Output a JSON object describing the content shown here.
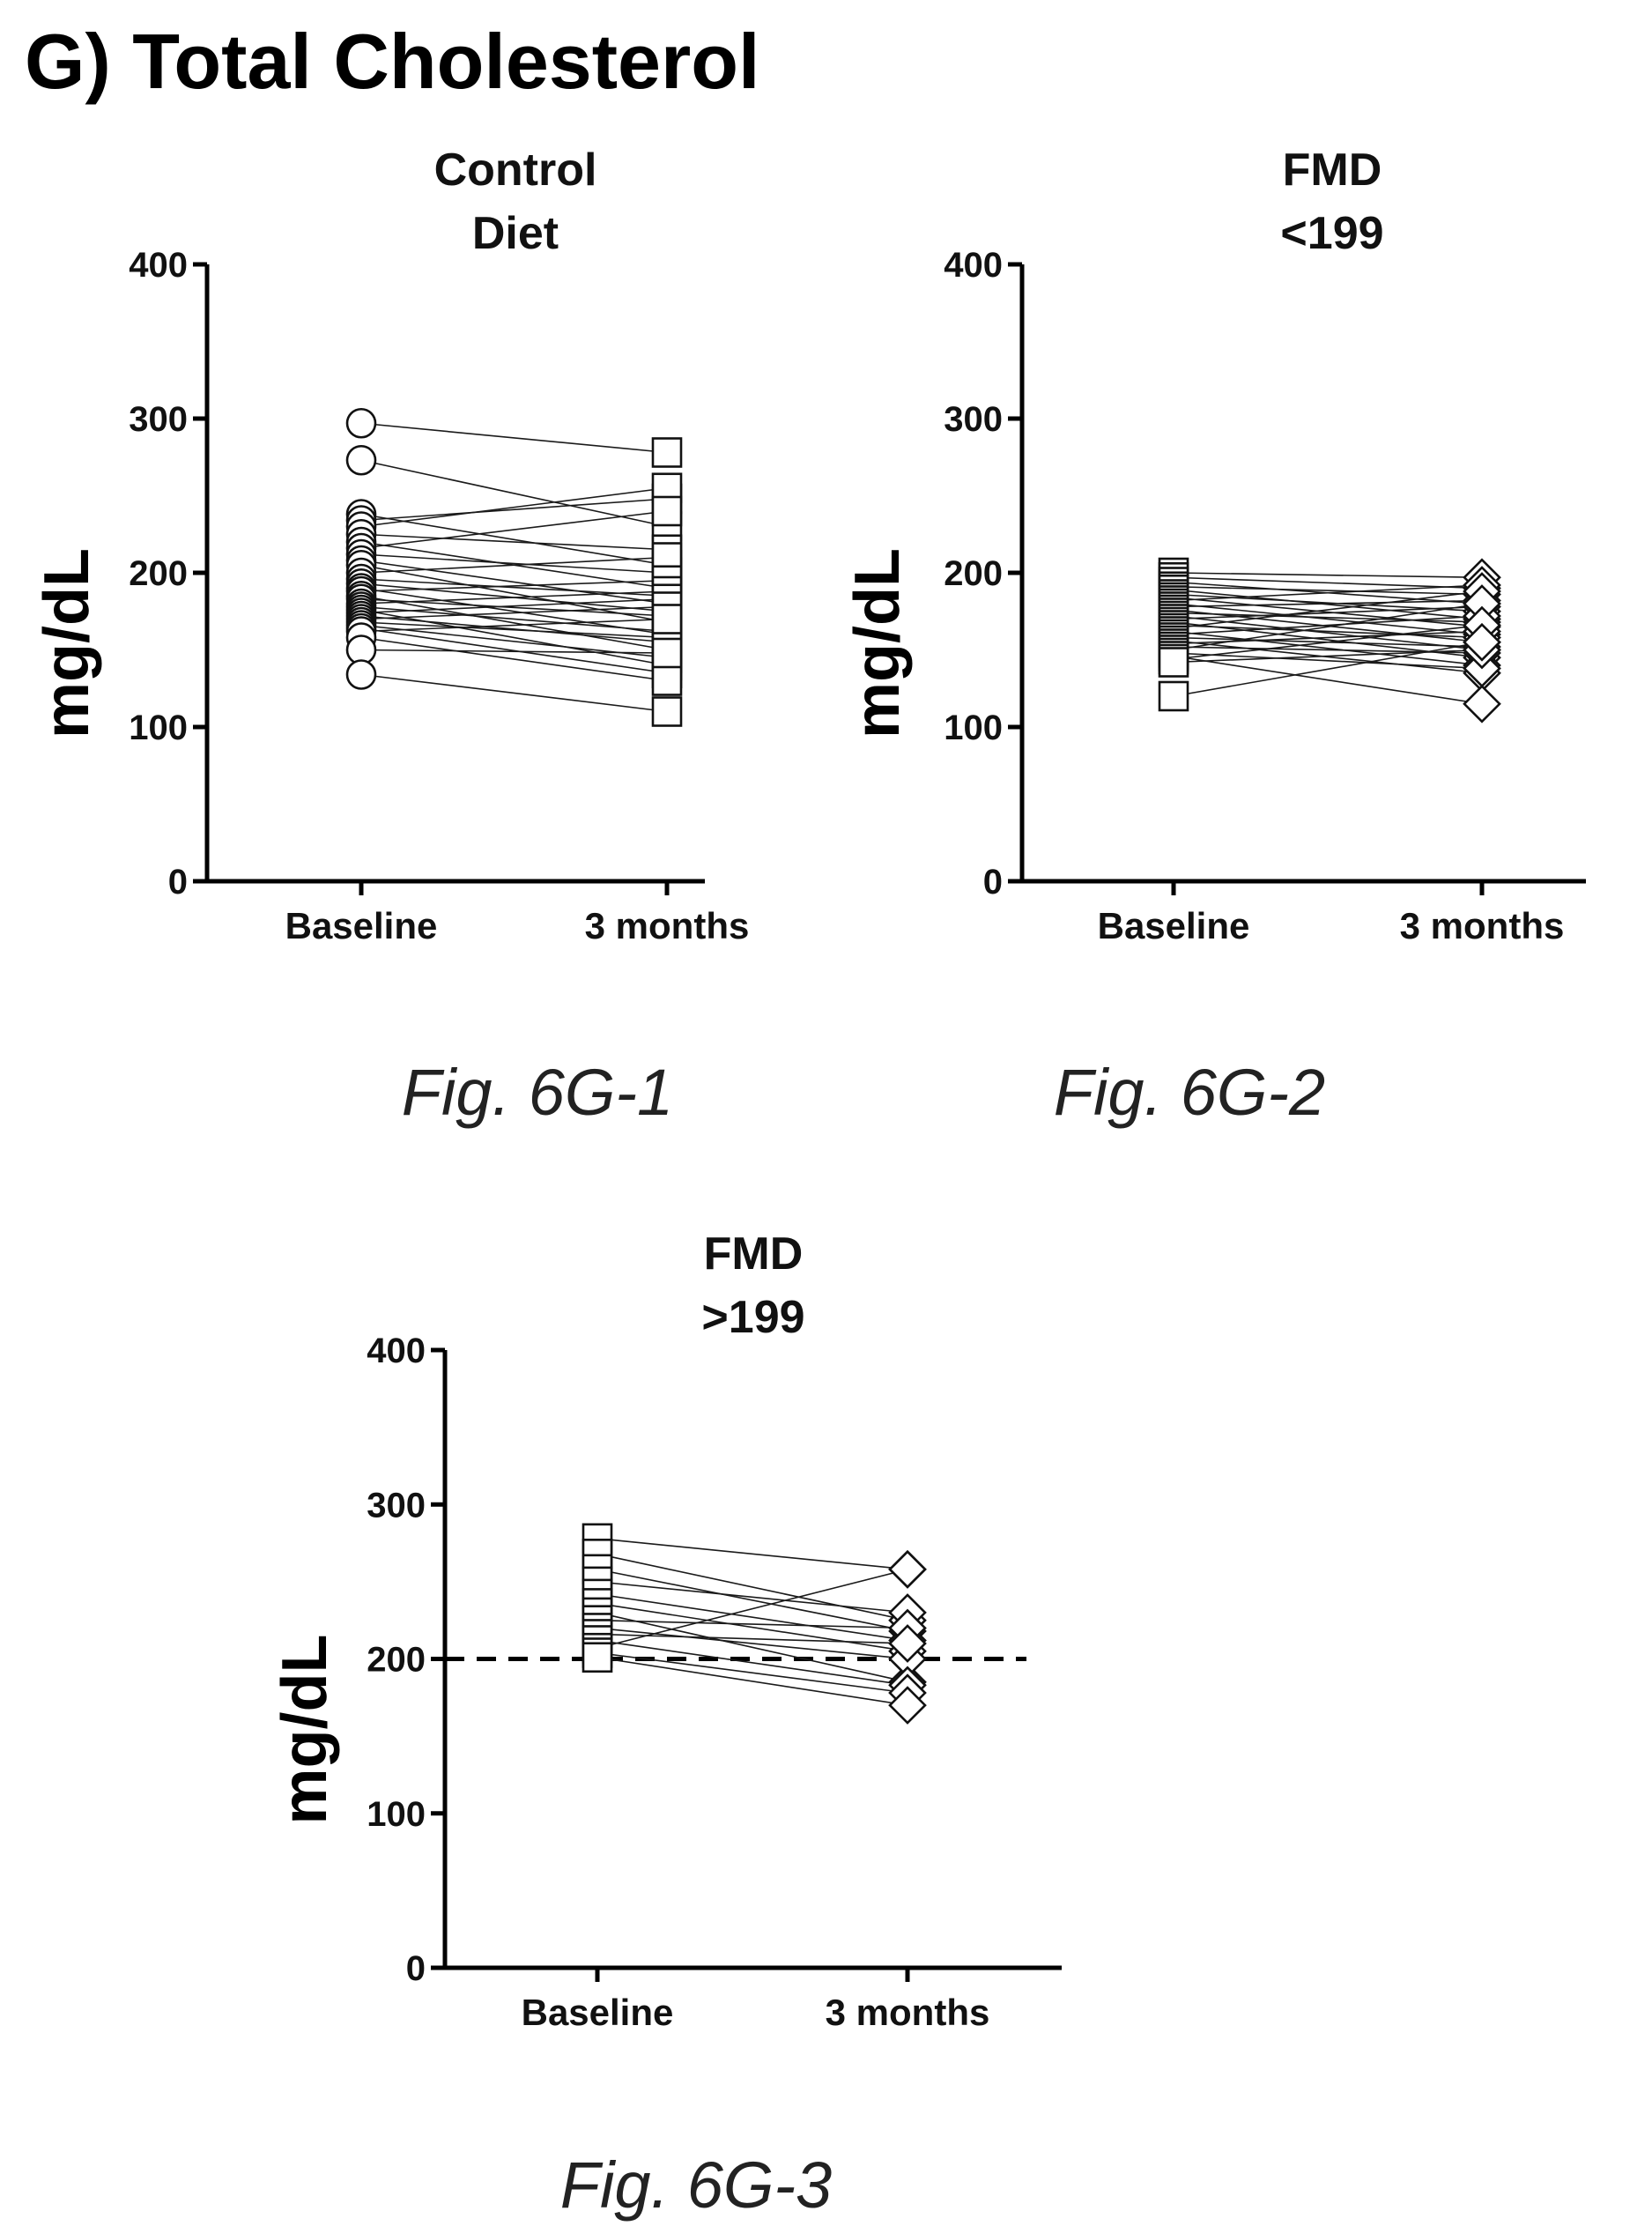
{
  "figure_title": "G) Total Cholesterol",
  "chart_data": [
    {
      "type": "line",
      "title": "Control Diet",
      "title_lines": [
        "Control",
        "Diet"
      ],
      "caption": "Fig. 6G-1",
      "ylabel": "mg/dL",
      "xlabel": "",
      "categories": [
        "Baseline",
        "3 months"
      ],
      "ylim": [
        0,
        400
      ],
      "yticks": [
        "0",
        "100",
        "200",
        "300",
        "400"
      ],
      "grid": false,
      "markers": {
        "baseline": "circle",
        "followup": "square"
      },
      "pairs": [
        [
          297,
          278
        ],
        [
          273,
          230
        ],
        [
          238,
          205
        ],
        [
          234,
          248
        ],
        [
          230,
          255
        ],
        [
          225,
          215
        ],
        [
          220,
          190
        ],
        [
          216,
          240
        ],
        [
          212,
          200
        ],
        [
          208,
          180
        ],
        [
          205,
          168
        ],
        [
          200,
          210
        ],
        [
          196,
          185
        ],
        [
          193,
          175
        ],
        [
          190,
          160
        ],
        [
          188,
          195
        ],
        [
          185,
          150
        ],
        [
          183,
          172
        ],
        [
          180,
          188
        ],
        [
          178,
          162
        ],
        [
          176,
          140
        ],
        [
          174,
          183
        ],
        [
          172,
          155
        ],
        [
          170,
          178
        ],
        [
          168,
          158
        ],
        [
          166,
          145
        ],
        [
          164,
          135
        ],
        [
          162,
          170
        ],
        [
          158,
          130
        ],
        [
          150,
          148
        ],
        [
          134,
          110
        ]
      ]
    },
    {
      "type": "line",
      "title": "FMD <199",
      "title_lines": [
        "FMD",
        "<199"
      ],
      "caption": "Fig. 6G-2",
      "ylabel": "mg/dL",
      "xlabel": "",
      "categories": [
        "Baseline",
        "3 months"
      ],
      "ylim": [
        0,
        400
      ],
      "yticks": [
        "0",
        "100",
        "200",
        "300",
        "400"
      ],
      "grid": false,
      "markers": {
        "baseline": "square",
        "followup": "diamond"
      },
      "pairs": [
        [
          200,
          197
        ],
        [
          197,
          190
        ],
        [
          194,
          180
        ],
        [
          191,
          186
        ],
        [
          189,
          170
        ],
        [
          186,
          175
        ],
        [
          184,
          165
        ],
        [
          182,
          192
        ],
        [
          180,
          160
        ],
        [
          178,
          182
        ],
        [
          176,
          155
        ],
        [
          174,
          168
        ],
        [
          172,
          150
        ],
        [
          170,
          178
        ],
        [
          168,
          145
        ],
        [
          166,
          158
        ],
        [
          164,
          188
        ],
        [
          162,
          140
        ],
        [
          160,
          172
        ],
        [
          158,
          152
        ],
        [
          156,
          135
        ],
        [
          154,
          162
        ],
        [
          152,
          148
        ],
        [
          150,
          180
        ],
        [
          148,
          138
        ],
        [
          146,
          115
        ],
        [
          144,
          166
        ],
        [
          142,
          150
        ],
        [
          120,
          155
        ]
      ]
    },
    {
      "type": "line",
      "title": "FMD >199",
      "title_lines": [
        "FMD",
        ">199"
      ],
      "caption": "Fig. 6G-3",
      "ylabel": "mg/dL",
      "xlabel": "",
      "categories": [
        "Baseline",
        "3 months"
      ],
      "ylim": [
        0,
        400
      ],
      "yticks": [
        "0",
        "100",
        "200",
        "300",
        "400"
      ],
      "grid": false,
      "reference_line": 200,
      "markers": {
        "baseline": "square",
        "followup": "diamond"
      },
      "pairs": [
        [
          278,
          258
        ],
        [
          268,
          225
        ],
        [
          258,
          218
        ],
        [
          250,
          230
        ],
        [
          242,
          212
        ],
        [
          236,
          205
        ],
        [
          230,
          185
        ],
        [
          225,
          220
        ],
        [
          220,
          200
        ],
        [
          216,
          210
        ],
        [
          212,
          183
        ],
        [
          207,
          258
        ],
        [
          204,
          178
        ],
        [
          201,
          170
        ]
      ]
    }
  ]
}
